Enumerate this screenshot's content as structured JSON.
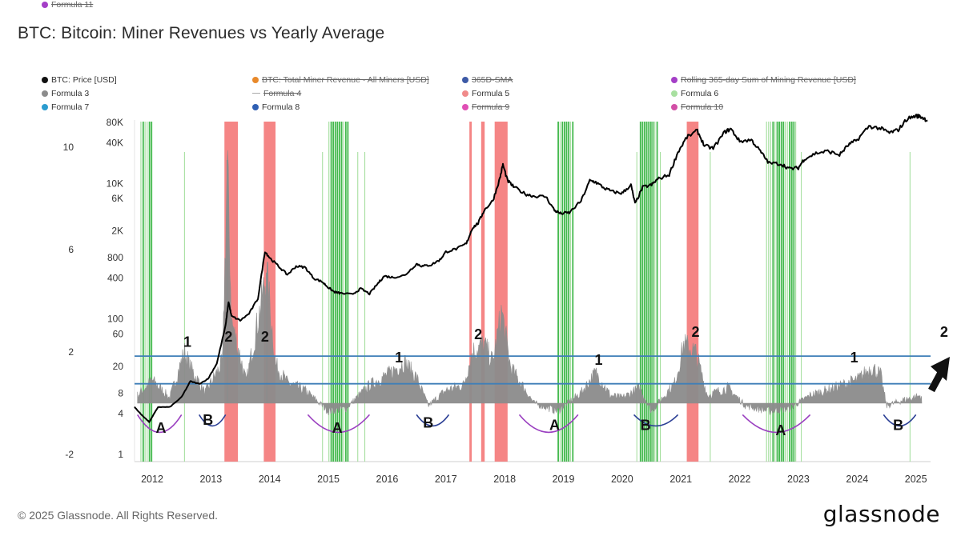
{
  "title": "BTC: Bitcoin: Miner Revenues vs Yearly Average",
  "footer": "© 2025 Glassnode. All Rights Reserved.",
  "brand": "glassnode",
  "legend": [
    {
      "label": "BTC: Price [USD]",
      "color": "#111111",
      "active": true,
      "marker": "dot"
    },
    {
      "label": "BTC: Total Miner Revenue - All Miners [USD]",
      "color": "#e8892b",
      "active": false,
      "marker": "dot"
    },
    {
      "label": "365D-SMA",
      "color": "#3d5aa6",
      "active": false,
      "marker": "dot"
    },
    {
      "label": "Rolling 365-day Sum of Mining Revenue [USD]",
      "color": "#a43fc7",
      "active": false,
      "marker": "dot"
    },
    {
      "label": "Formula 3",
      "color": "#8c8c8c",
      "active": true,
      "marker": "dot"
    },
    {
      "label": "Formula 4",
      "color": "#aaaaaa",
      "active": false,
      "marker": "dash"
    },
    {
      "label": "Formula 5",
      "color": "#f08a8a",
      "active": true,
      "marker": "dot"
    },
    {
      "label": "Formula 6",
      "color": "#a8e0a0",
      "active": true,
      "marker": "dot"
    },
    {
      "label": "Formula 7",
      "color": "#2b9ccf",
      "active": true,
      "marker": "dot"
    },
    {
      "label": "Formula 8",
      "color": "#2f5fb3",
      "active": true,
      "marker": "dot"
    },
    {
      "label": "Formula 9",
      "color": "#e04fb5",
      "active": false,
      "marker": "dot"
    },
    {
      "label": "Formula 10",
      "color": "#d24fa6",
      "active": false,
      "marker": "dot"
    },
    {
      "label": "Formula 11",
      "color": "#a43fc7",
      "active": false,
      "marker": "dot"
    }
  ],
  "colors": {
    "price": "#000000",
    "oscillator": "#8c8c8c",
    "sell_zone": "#f47b7b",
    "buy_zone": "#2fb13a",
    "buy_zone_light": "#9fdc98",
    "threshold": "#3f7fb8",
    "arc_a": "#9a3fc0",
    "arc_b": "#2b3f95"
  },
  "chart_data": {
    "type": "line",
    "title": "BTC: Bitcoin: Miner Revenues vs Yearly Average",
    "x_ticks": [
      "2012",
      "2013",
      "2014",
      "2015",
      "2016",
      "2017",
      "2018",
      "2019",
      "2020",
      "2021",
      "2022",
      "2023",
      "2024",
      "2025"
    ],
    "x_range": [
      2011.7,
      2025.25
    ],
    "price_axis": {
      "scale": "log",
      "ticks": [
        "1",
        "4",
        "8",
        "20",
        "60",
        "100",
        "400",
        "800",
        "2K",
        "6K",
        "10K",
        "40K",
        "80K"
      ],
      "range": [
        1,
        120000
      ]
    },
    "oscillator_axis": {
      "ticks": [
        "-2",
        "2",
        "6",
        "10"
      ],
      "range": [
        -2.0,
        11.0
      ]
    },
    "thresholds": [
      1.84,
      0.76
    ],
    "price_series": [
      [
        2011.7,
        5
      ],
      [
        2011.8,
        4
      ],
      [
        2011.95,
        3
      ],
      [
        2012.1,
        5
      ],
      [
        2012.3,
        5
      ],
      [
        2012.5,
        7
      ],
      [
        2012.65,
        12
      ],
      [
        2012.8,
        11
      ],
      [
        2012.95,
        13
      ],
      [
        2013.1,
        22
      ],
      [
        2013.25,
        80
      ],
      [
        2013.3,
        180
      ],
      [
        2013.35,
        110
      ],
      [
        2013.5,
        95
      ],
      [
        2013.65,
        120
      ],
      [
        2013.8,
        200
      ],
      [
        2013.92,
        1000
      ],
      [
        2014.0,
        800
      ],
      [
        2014.15,
        600
      ],
      [
        2014.3,
        450
      ],
      [
        2014.45,
        600
      ],
      [
        2014.6,
        580
      ],
      [
        2014.75,
        400
      ],
      [
        2014.9,
        350
      ],
      [
        2015.0,
        290
      ],
      [
        2015.1,
        250
      ],
      [
        2015.2,
        240
      ],
      [
        2015.4,
        230
      ],
      [
        2015.55,
        280
      ],
      [
        2015.7,
        235
      ],
      [
        2015.85,
        340
      ],
      [
        2015.95,
        430
      ],
      [
        2016.1,
        410
      ],
      [
        2016.3,
        440
      ],
      [
        2016.5,
        650
      ],
      [
        2016.6,
        600
      ],
      [
        2016.75,
        630
      ],
      [
        2016.9,
        750
      ],
      [
        2017.0,
        980
      ],
      [
        2017.2,
        1100
      ],
      [
        2017.35,
        1300
      ],
      [
        2017.45,
        2200
      ],
      [
        2017.55,
        2600
      ],
      [
        2017.65,
        4000
      ],
      [
        2017.8,
        5600
      ],
      [
        2017.92,
        12000
      ],
      [
        2017.97,
        19000
      ],
      [
        2018.05,
        11000
      ],
      [
        2018.15,
        9000
      ],
      [
        2018.35,
        7000
      ],
      [
        2018.5,
        6500
      ],
      [
        2018.7,
        6400
      ],
      [
        2018.85,
        4000
      ],
      [
        2018.95,
        3600
      ],
      [
        2019.1,
        3700
      ],
      [
        2019.3,
        5500
      ],
      [
        2019.45,
        11000
      ],
      [
        2019.55,
        10500
      ],
      [
        2019.7,
        8500
      ],
      [
        2019.85,
        7500
      ],
      [
        2020.0,
        7200
      ],
      [
        2020.15,
        9500
      ],
      [
        2020.22,
        5000
      ],
      [
        2020.35,
        8800
      ],
      [
        2020.5,
        9500
      ],
      [
        2020.6,
        11500
      ],
      [
        2020.8,
        13500
      ],
      [
        2020.95,
        29000
      ],
      [
        2021.1,
        48000
      ],
      [
        2021.28,
        60000
      ],
      [
        2021.4,
        36000
      ],
      [
        2021.55,
        33000
      ],
      [
        2021.75,
        58000
      ],
      [
        2021.85,
        64000
      ],
      [
        2022.0,
        42000
      ],
      [
        2022.2,
        44000
      ],
      [
        2022.35,
        30000
      ],
      [
        2022.5,
        20000
      ],
      [
        2022.7,
        19500
      ],
      [
        2022.85,
        16500
      ],
      [
        2023.0,
        17000
      ],
      [
        2023.1,
        23000
      ],
      [
        2023.3,
        28000
      ],
      [
        2023.5,
        30000
      ],
      [
        2023.7,
        26500
      ],
      [
        2023.85,
        37000
      ],
      [
        2024.0,
        44000
      ],
      [
        2024.2,
        70000
      ],
      [
        2024.4,
        65000
      ],
      [
        2024.55,
        56000
      ],
      [
        2024.7,
        62000
      ],
      [
        2024.85,
        90000
      ],
      [
        2025.0,
        100000
      ],
      [
        2025.1,
        96000
      ],
      [
        2025.2,
        85000
      ]
    ],
    "oscillator_peaks": [
      [
        2011.75,
        0.3
      ],
      [
        2012.0,
        0.9
      ],
      [
        2012.3,
        0.2
      ],
      [
        2012.55,
        2.0
      ],
      [
        2012.65,
        1.4
      ],
      [
        2012.9,
        0.4
      ],
      [
        2013.2,
        1.6
      ],
      [
        2013.28,
        9.5
      ],
      [
        2013.35,
        3.2
      ],
      [
        2013.5,
        1.8
      ],
      [
        2013.6,
        0.8
      ],
      [
        2013.88,
        4.2
      ],
      [
        2013.95,
        5.1
      ],
      [
        2014.1,
        1.5
      ],
      [
        2014.3,
        0.8
      ],
      [
        2014.6,
        0.5
      ],
      [
        2015.0,
        -0.3
      ],
      [
        2015.3,
        -0.2
      ],
      [
        2015.7,
        0.7
      ],
      [
        2016.0,
        1.1
      ],
      [
        2016.3,
        1.6
      ],
      [
        2016.5,
        1.0
      ],
      [
        2016.7,
        -0.1
      ],
      [
        2017.0,
        0.5
      ],
      [
        2017.3,
        0.7
      ],
      [
        2017.45,
        2.0
      ],
      [
        2017.65,
        2.3
      ],
      [
        2017.8,
        1.6
      ],
      [
        2017.95,
        3.6
      ],
      [
        2018.1,
        1.4
      ],
      [
        2018.5,
        0.0
      ],
      [
        2018.9,
        -0.3
      ],
      [
        2019.3,
        0.4
      ],
      [
        2019.55,
        1.2
      ],
      [
        2019.8,
        0.3
      ],
      [
        2020.0,
        0.2
      ],
      [
        2020.3,
        0.6
      ],
      [
        2020.5,
        -0.3
      ],
      [
        2020.9,
        0.8
      ],
      [
        2021.05,
        2.3
      ],
      [
        2021.25,
        2.0
      ],
      [
        2021.45,
        0.3
      ],
      [
        2021.8,
        0.6
      ],
      [
        2022.1,
        -0.1
      ],
      [
        2022.5,
        -0.3
      ],
      [
        2022.85,
        -0.2
      ],
      [
        2023.2,
        0.3
      ],
      [
        2023.6,
        0.6
      ],
      [
        2024.0,
        0.9
      ],
      [
        2024.25,
        1.4
      ],
      [
        2024.4,
        1.1
      ],
      [
        2024.5,
        -0.1
      ],
      [
        2024.75,
        0.1
      ],
      [
        2025.1,
        0.3
      ]
    ],
    "sell_zones": [
      [
        2013.23,
        2013.46
      ],
      [
        2013.9,
        2014.1
      ],
      [
        2017.4,
        2017.44
      ],
      [
        2017.6,
        2017.66
      ],
      [
        2017.83,
        2018.05
      ],
      [
        2021.1,
        2021.3
      ]
    ],
    "buy_zones": [
      [
        2011.8,
        2012.0
      ],
      [
        2015.0,
        2015.35
      ],
      [
        2018.9,
        2019.15
      ],
      [
        2020.3,
        2020.6
      ],
      [
        2022.45,
        2022.95
      ]
    ],
    "annotations": [
      {
        "text": "1",
        "x": 2012.6,
        "y": 2.2
      },
      {
        "text": "2",
        "x": 2013.3,
        "y": 2.4
      },
      {
        "text": "2",
        "x": 2013.92,
        "y": 2.4
      },
      {
        "text": "1",
        "x": 2016.2,
        "y": 1.6
      },
      {
        "text": "2",
        "x": 2017.55,
        "y": 2.5
      },
      {
        "text": "1",
        "x": 2019.6,
        "y": 1.5
      },
      {
        "text": "2",
        "x": 2021.25,
        "y": 2.6
      },
      {
        "text": "1",
        "x": 2023.95,
        "y": 1.6
      },
      {
        "text": "2",
        "x": 2025.48,
        "y": 2.6
      },
      {
        "text": "A",
        "x": 2012.15,
        "y": -1.15
      },
      {
        "text": "B",
        "x": 2012.95,
        "y": -0.85
      },
      {
        "text": "A",
        "x": 2015.15,
        "y": -1.15
      },
      {
        "text": "B",
        "x": 2016.7,
        "y": -0.95
      },
      {
        "text": "A",
        "x": 2018.85,
        "y": -1.05
      },
      {
        "text": "B",
        "x": 2020.4,
        "y": -1.05
      },
      {
        "text": "A",
        "x": 2022.7,
        "y": -1.25
      },
      {
        "text": "B",
        "x": 2024.7,
        "y": -1.05
      }
    ],
    "arcs": [
      {
        "type": "A",
        "from": 2011.75,
        "to": 2012.5
      },
      {
        "type": "B",
        "from": 2012.8,
        "to": 2013.25
      },
      {
        "type": "A",
        "from": 2014.65,
        "to": 2015.7
      },
      {
        "type": "B",
        "from": 2016.5,
        "to": 2017.05
      },
      {
        "type": "A",
        "from": 2018.25,
        "to": 2019.25
      },
      {
        "type": "B",
        "from": 2020.2,
        "to": 2020.95
      },
      {
        "type": "A",
        "from": 2022.05,
        "to": 2023.2
      },
      {
        "type": "B",
        "from": 2024.45,
        "to": 2025.0
      }
    ]
  }
}
